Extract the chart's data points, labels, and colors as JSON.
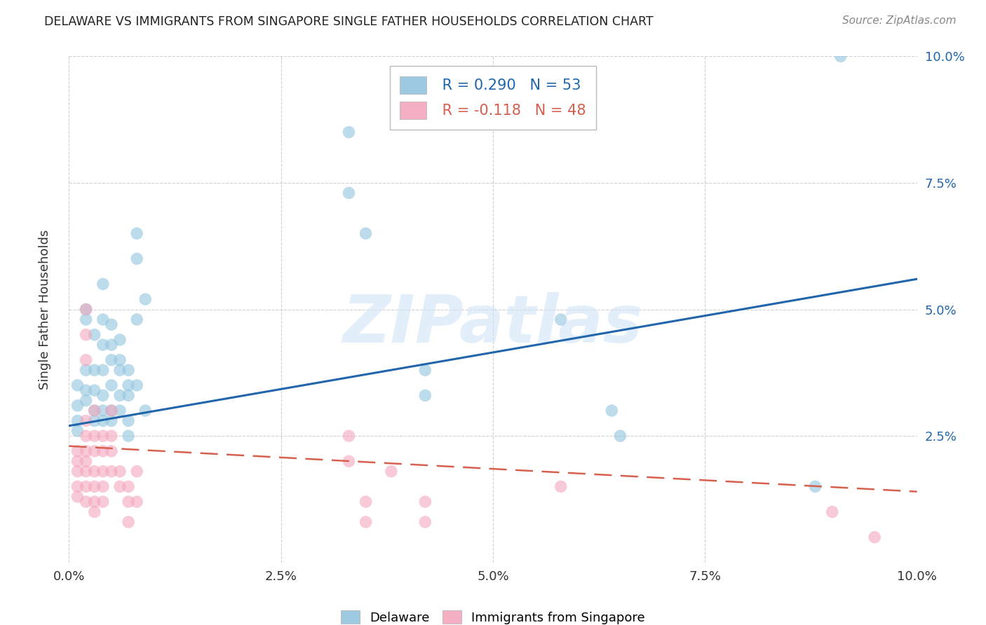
{
  "title": "DELAWARE VS IMMIGRANTS FROM SINGAPORE SINGLE FATHER HOUSEHOLDS CORRELATION CHART",
  "source": "Source: ZipAtlas.com",
  "ylabel": "Single Father Households",
  "xlim": [
    0.0,
    0.1
  ],
  "ylim": [
    0.0,
    0.1
  ],
  "xtick_labels": [
    "0.0%",
    "",
    "2.5%",
    "",
    "5.0%",
    "",
    "7.5%",
    "",
    "10.0%"
  ],
  "ytick_labels_right": [
    "2.5%",
    "5.0%",
    "7.5%",
    "10.0%"
  ],
  "xtick_vals": [
    0.0,
    0.0125,
    0.025,
    0.0375,
    0.05,
    0.0625,
    0.075,
    0.0875,
    0.1
  ],
  "ytick_vals": [
    0.025,
    0.05,
    0.075,
    0.1
  ],
  "watermark": "ZIPatlas",
  "legend_blue_r": "R = 0.290",
  "legend_blue_n": "N = 53",
  "legend_pink_r": "R = -0.118",
  "legend_pink_n": "N = 48",
  "blue_color": "#92c5de",
  "pink_color": "#f4a6bd",
  "blue_line_color": "#2166ac",
  "pink_line_color": "#d6604d",
  "blue_scatter": [
    [
      0.001,
      0.031
    ],
    [
      0.001,
      0.035
    ],
    [
      0.001,
      0.028
    ],
    [
      0.001,
      0.026
    ],
    [
      0.002,
      0.048
    ],
    [
      0.002,
      0.05
    ],
    [
      0.002,
      0.038
    ],
    [
      0.002,
      0.034
    ],
    [
      0.002,
      0.032
    ],
    [
      0.003,
      0.045
    ],
    [
      0.003,
      0.038
    ],
    [
      0.003,
      0.034
    ],
    [
      0.003,
      0.03
    ],
    [
      0.003,
      0.028
    ],
    [
      0.004,
      0.055
    ],
    [
      0.004,
      0.048
    ],
    [
      0.004,
      0.043
    ],
    [
      0.004,
      0.038
    ],
    [
      0.004,
      0.033
    ],
    [
      0.004,
      0.03
    ],
    [
      0.004,
      0.028
    ],
    [
      0.005,
      0.047
    ],
    [
      0.005,
      0.043
    ],
    [
      0.005,
      0.04
    ],
    [
      0.005,
      0.035
    ],
    [
      0.005,
      0.03
    ],
    [
      0.005,
      0.028
    ],
    [
      0.006,
      0.044
    ],
    [
      0.006,
      0.04
    ],
    [
      0.006,
      0.038
    ],
    [
      0.006,
      0.033
    ],
    [
      0.006,
      0.03
    ],
    [
      0.007,
      0.038
    ],
    [
      0.007,
      0.035
    ],
    [
      0.007,
      0.033
    ],
    [
      0.007,
      0.028
    ],
    [
      0.007,
      0.025
    ],
    [
      0.008,
      0.065
    ],
    [
      0.008,
      0.06
    ],
    [
      0.008,
      0.048
    ],
    [
      0.008,
      0.035
    ],
    [
      0.009,
      0.052
    ],
    [
      0.009,
      0.03
    ],
    [
      0.033,
      0.085
    ],
    [
      0.033,
      0.073
    ],
    [
      0.035,
      0.065
    ],
    [
      0.042,
      0.038
    ],
    [
      0.042,
      0.033
    ],
    [
      0.058,
      0.048
    ],
    [
      0.064,
      0.03
    ],
    [
      0.065,
      0.025
    ],
    [
      0.088,
      0.015
    ],
    [
      0.091,
      0.1
    ]
  ],
  "pink_scatter": [
    [
      0.001,
      0.02
    ],
    [
      0.001,
      0.022
    ],
    [
      0.001,
      0.018
    ],
    [
      0.001,
      0.015
    ],
    [
      0.001,
      0.013
    ],
    [
      0.002,
      0.05
    ],
    [
      0.002,
      0.045
    ],
    [
      0.002,
      0.04
    ],
    [
      0.002,
      0.028
    ],
    [
      0.002,
      0.025
    ],
    [
      0.002,
      0.022
    ],
    [
      0.002,
      0.02
    ],
    [
      0.002,
      0.018
    ],
    [
      0.002,
      0.015
    ],
    [
      0.002,
      0.012
    ],
    [
      0.003,
      0.03
    ],
    [
      0.003,
      0.025
    ],
    [
      0.003,
      0.022
    ],
    [
      0.003,
      0.018
    ],
    [
      0.003,
      0.015
    ],
    [
      0.003,
      0.012
    ],
    [
      0.003,
      0.01
    ],
    [
      0.004,
      0.025
    ],
    [
      0.004,
      0.022
    ],
    [
      0.004,
      0.018
    ],
    [
      0.004,
      0.015
    ],
    [
      0.004,
      0.012
    ],
    [
      0.005,
      0.03
    ],
    [
      0.005,
      0.025
    ],
    [
      0.005,
      0.022
    ],
    [
      0.005,
      0.018
    ],
    [
      0.006,
      0.018
    ],
    [
      0.006,
      0.015
    ],
    [
      0.007,
      0.015
    ],
    [
      0.007,
      0.012
    ],
    [
      0.007,
      0.008
    ],
    [
      0.008,
      0.018
    ],
    [
      0.008,
      0.012
    ],
    [
      0.033,
      0.02
    ],
    [
      0.033,
      0.025
    ],
    [
      0.035,
      0.012
    ],
    [
      0.035,
      0.008
    ],
    [
      0.038,
      0.018
    ],
    [
      0.042,
      0.012
    ],
    [
      0.042,
      0.008
    ],
    [
      0.058,
      0.015
    ],
    [
      0.09,
      0.01
    ],
    [
      0.095,
      0.005
    ]
  ],
  "blue_trendline": [
    [
      0.0,
      0.027
    ],
    [
      0.1,
      0.056
    ]
  ],
  "pink_trendline": [
    [
      0.0,
      0.023
    ],
    [
      0.1,
      0.014
    ]
  ],
  "background_color": "#ffffff",
  "grid_color": "#d0d0d0"
}
